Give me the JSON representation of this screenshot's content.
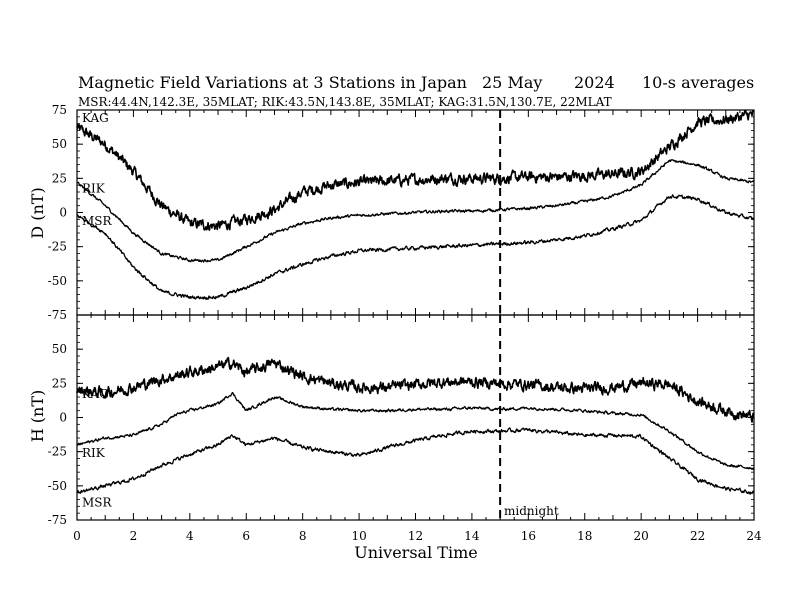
{
  "title": {
    "main": "Magnetic Field Variations at 3 Stations in Japan",
    "date": "25 May",
    "year": "2024",
    "averaging": "10-s averages"
  },
  "subtitle": "MSR:44.4N,142.3E, 35MLAT;  RIK:43.5N,143.8E, 35MLAT;  KAG:31.5N,130.7E, 22MLAT",
  "midnight_label": "midnight",
  "chart_data": [
    {
      "type": "line",
      "panel": "top",
      "ylabel": "D (nT)",
      "xlabel": "",
      "xlim": [
        0,
        24
      ],
      "ylim": [
        -75,
        75
      ],
      "yticks": [
        75,
        50,
        25,
        0,
        -25,
        -50,
        -75
      ],
      "xticks": [
        0,
        2,
        4,
        6,
        8,
        10,
        12,
        14,
        16,
        18,
        20,
        22,
        24
      ],
      "midnight_ut": 15,
      "series": [
        {
          "name": "KAG",
          "noise": 3,
          "x": [
            0,
            1,
            2,
            3,
            4,
            5,
            6,
            7,
            8,
            9,
            10,
            11,
            12,
            13,
            14,
            15,
            16,
            17,
            18,
            19,
            20,
            21,
            22,
            23,
            24
          ],
          "values": [
            62,
            50,
            30,
            5,
            -8,
            -10,
            -5,
            2,
            15,
            20,
            22,
            23,
            24,
            25,
            25,
            25,
            26,
            26,
            27,
            28,
            30,
            48,
            66,
            68,
            72
          ]
        },
        {
          "name": "RIK",
          "noise": 0.8,
          "x": [
            0,
            1,
            2,
            3,
            4,
            5,
            6,
            7,
            8,
            9,
            10,
            11,
            12,
            13,
            14,
            15,
            16,
            17,
            18,
            19,
            20,
            21,
            22,
            23,
            24
          ],
          "values": [
            22,
            5,
            -15,
            -30,
            -35,
            -35,
            -25,
            -15,
            -8,
            -4,
            -2,
            -1,
            0,
            1,
            1,
            2,
            3,
            5,
            8,
            12,
            20,
            38,
            35,
            25,
            22
          ]
        },
        {
          "name": "MSR",
          "noise": 1,
          "x": [
            0,
            1,
            2,
            3,
            4,
            5,
            6,
            7,
            8,
            9,
            10,
            11,
            12,
            13,
            14,
            15,
            16,
            17,
            18,
            19,
            20,
            21,
            22,
            23,
            24
          ],
          "values": [
            -2,
            -15,
            -40,
            -58,
            -62,
            -62,
            -55,
            -45,
            -38,
            -32,
            -28,
            -27,
            -26,
            -25,
            -24,
            -23,
            -22,
            -20,
            -17,
            -12,
            -6,
            12,
            10,
            0,
            -5
          ]
        }
      ]
    },
    {
      "type": "line",
      "panel": "bottom",
      "ylabel": "H (nT)",
      "xlabel": "Universal Time",
      "xlim": [
        0,
        24
      ],
      "ylim": [
        -75,
        75
      ],
      "yticks": [
        50,
        25,
        0,
        -25,
        -50,
        -75
      ],
      "xticks": [
        0,
        2,
        4,
        6,
        8,
        10,
        12,
        14,
        16,
        18,
        20,
        22,
        24
      ],
      "midnight_ut": 15,
      "series": [
        {
          "name": "KAG",
          "noise": 3,
          "x": [
            0,
            1,
            2,
            3,
            4,
            5,
            5.5,
            6,
            7,
            8,
            9,
            10,
            11,
            12,
            13,
            14,
            15,
            16,
            17,
            18,
            19,
            20,
            21,
            22,
            23,
            24
          ],
          "values": [
            20,
            18,
            22,
            28,
            33,
            37,
            40,
            33,
            40,
            30,
            25,
            22,
            22,
            24,
            26,
            26,
            25,
            24,
            22,
            21,
            22,
            25,
            24,
            12,
            5,
            0
          ]
        },
        {
          "name": "RIK",
          "noise": 0.8,
          "x": [
            0,
            1,
            2,
            3,
            3.5,
            4,
            5,
            5.5,
            6,
            7,
            8,
            9,
            10,
            11,
            12,
            13,
            14,
            15,
            16,
            17,
            18,
            19,
            20,
            21,
            22,
            23,
            24
          ],
          "values": [
            -20,
            -15,
            -13,
            -5,
            2,
            5,
            10,
            18,
            5,
            15,
            8,
            6,
            5,
            5,
            6,
            6,
            7,
            6,
            7,
            6,
            5,
            3,
            2,
            -10,
            -25,
            -35,
            -37
          ]
        },
        {
          "name": "MSR",
          "noise": 1,
          "x": [
            0,
            1,
            2,
            3,
            4,
            5,
            5.5,
            6,
            7,
            8,
            9,
            10,
            11,
            12,
            13,
            14,
            15,
            16,
            17,
            18,
            19,
            20,
            21,
            22,
            23,
            24
          ],
          "values": [
            -55,
            -50,
            -45,
            -35,
            -27,
            -20,
            -13,
            -20,
            -15,
            -22,
            -25,
            -28,
            -22,
            -17,
            -13,
            -10,
            -10,
            -9,
            -11,
            -13,
            -13,
            -14,
            -30,
            -45,
            -52,
            -55
          ]
        }
      ]
    }
  ]
}
